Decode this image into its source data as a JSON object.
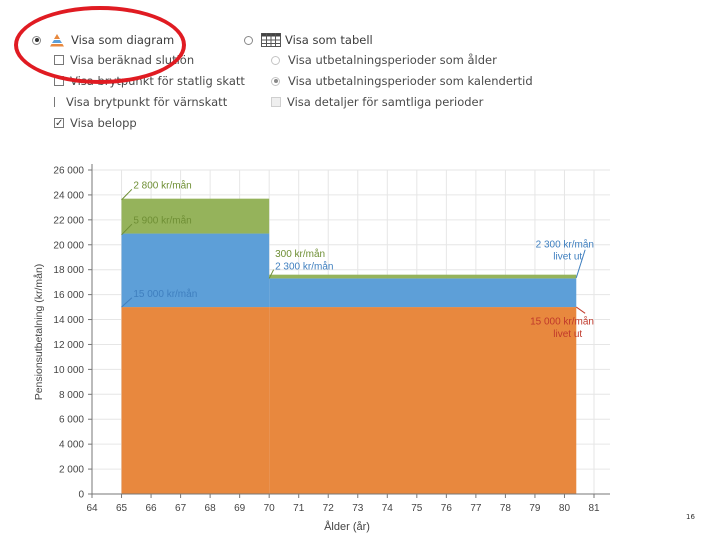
{
  "controls": {
    "view_diagram_label": "Visa som diagram",
    "view_table_label": "Visa som tabell",
    "final_salary_label": "Visa beräknad slutlön",
    "state_tax_label": "Visa brytpunkt för statlig skatt",
    "wealth_tax_label": "Visa brytpunkt för värnskatt",
    "amount_label": "Visa belopp",
    "periods_age_label": "Visa utbetalningsperioder som ålder",
    "periods_calendar_label": "Visa utbetalningsperioder som kalendertid",
    "details_label": "Visa detaljer för samtliga perioder"
  },
  "page_number": "16",
  "colors": {
    "orange": "#e8883e",
    "blue": "#5d9fd8",
    "green": "#95b35b",
    "highlight": "#e01b22"
  },
  "chart_data": {
    "type": "area",
    "xlabel": "Ålder (år)",
    "ylabel": "Pensionsutbetalning (kr/mån)",
    "xlim": [
      64,
      81
    ],
    "ylim": [
      0,
      26000
    ],
    "xticks": [
      "64",
      "65",
      "66",
      "67",
      "68",
      "69",
      "70",
      "71",
      "72",
      "73",
      "74",
      "75",
      "76",
      "77",
      "78",
      "79",
      "80",
      "81"
    ],
    "yticks": [
      "0",
      "2 000",
      "4 000",
      "6 000",
      "8 000",
      "10 000",
      "12 000",
      "14 000",
      "16 000",
      "18 000",
      "20 000",
      "22 000",
      "24 000",
      "26 000"
    ],
    "grid": true,
    "series": [
      {
        "color": "#e8883e",
        "points": [
          [
            65,
            15000
          ],
          [
            70,
            15000
          ],
          [
            80.4,
            15000
          ]
        ]
      },
      {
        "color": "#5d9fd8",
        "points": [
          [
            65,
            5900
          ],
          [
            70,
            2300
          ],
          [
            80.4,
            2300
          ]
        ]
      },
      {
        "color": "#95b35b",
        "points": [
          [
            65,
            2800
          ],
          [
            70,
            300
          ],
          [
            80.4,
            0
          ]
        ]
      }
    ],
    "annotations": [
      {
        "text": "2 800 kr/mån",
        "x": 65.4,
        "y": 24500,
        "color": "#6f8f35"
      },
      {
        "text": "5 900 kr/mån",
        "x": 65.4,
        "y": 21700,
        "color": "#6f8f35"
      },
      {
        "text": "15 000 kr/mån",
        "x": 65.4,
        "y": 15800,
        "color": "#3f7fbf"
      },
      {
        "text": "300 kr/mån",
        "x": 70.2,
        "y": 19000,
        "color": "#6f8f35"
      },
      {
        "text": "2 300 kr/mån",
        "x": 70.2,
        "y": 18000,
        "color": "#3f7fbf"
      },
      {
        "text": "2 300 kr/mån",
        "x": 81.0,
        "y": 19800,
        "color": "#3f7fbf",
        "anchor": "end"
      },
      {
        "text": "livet ut",
        "x": 80.6,
        "y": 18800,
        "color": "#3f7fbf",
        "anchor": "end"
      },
      {
        "text": "15 000 kr/mån",
        "x": 81.0,
        "y": 13600,
        "color": "#c0392b",
        "anchor": "end"
      },
      {
        "text": "livet ut",
        "x": 80.6,
        "y": 12600,
        "color": "#c0392b",
        "anchor": "end"
      }
    ]
  }
}
